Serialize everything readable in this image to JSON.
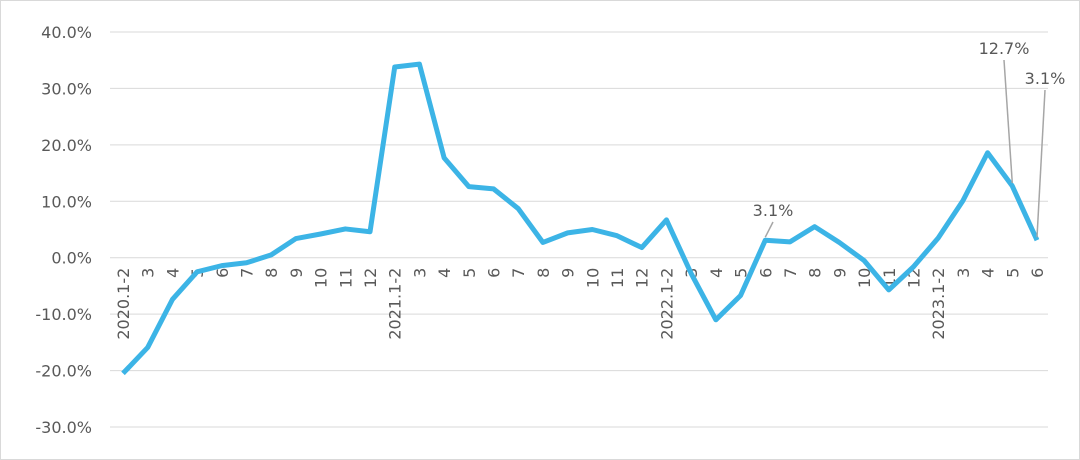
{
  "chart_data": {
    "type": "line",
    "categories": [
      "2020.1-2",
      "3",
      "4",
      "5",
      "6",
      "7",
      "8",
      "9",
      "10",
      "11",
      "12",
      "2021.1-2",
      "3",
      "4",
      "5",
      "6",
      "7",
      "8",
      "9",
      "10",
      "11",
      "12",
      "2022.1-2",
      "3",
      "4",
      "5",
      "6",
      "7",
      "8",
      "9",
      "10",
      "11",
      "12",
      "2023.1-2",
      "3",
      "4",
      "5",
      "6"
    ],
    "values": [
      -20.5,
      -15.9,
      -7.4,
      -2.5,
      -1.4,
      -0.9,
      0.5,
      3.4,
      4.2,
      5.1,
      4.6,
      33.8,
      34.3,
      17.7,
      12.6,
      12.2,
      8.7,
      2.7,
      4.4,
      5.0,
      3.9,
      1.8,
      6.7,
      -2.8,
      -11.0,
      -6.7,
      3.1,
      2.8,
      5.5,
      2.7,
      -0.5,
      -5.7,
      -1.6,
      3.5,
      10.1,
      18.6,
      12.7,
      3.1
    ],
    "value_labels": [
      null,
      null,
      null,
      null,
      null,
      null,
      null,
      null,
      null,
      null,
      null,
      null,
      null,
      null,
      null,
      null,
      null,
      null,
      null,
      null,
      null,
      null,
      null,
      null,
      null,
      null,
      "3.1%",
      null,
      null,
      null,
      null,
      null,
      null,
      null,
      null,
      null,
      "12.7%",
      "3.1%"
    ],
    "color": "#3cb4e6",
    "ylim": [
      -30,
      40
    ],
    "yticks": [
      {
        "value": -30,
        "label": "-30.0%"
      },
      {
        "value": -20,
        "label": "-20.0%"
      },
      {
        "value": -10,
        "label": "-10.0%"
      },
      {
        "value": 0,
        "label": "0.0%"
      },
      {
        "value": 10,
        "label": "10.0%"
      },
      {
        "value": 20,
        "label": "20.0%"
      },
      {
        "value": 30,
        "label": "30.0%"
      },
      {
        "value": 40,
        "label": "40.0%"
      }
    ],
    "grid": true
  }
}
